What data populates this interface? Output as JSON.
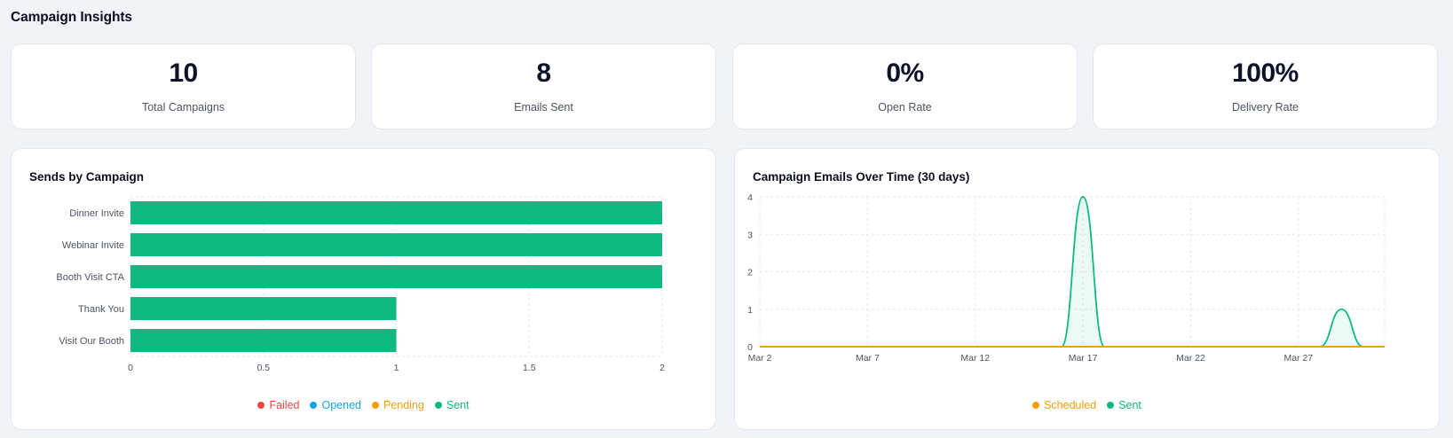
{
  "page": {
    "title": "Campaign Insights"
  },
  "stats": [
    {
      "value": "10",
      "label": "Total Campaigns"
    },
    {
      "value": "8",
      "label": "Emails Sent"
    },
    {
      "value": "0%",
      "label": "Open Rate"
    },
    {
      "value": "100%",
      "label": "Delivery Rate"
    }
  ],
  "colors": {
    "sent": "#10b981",
    "failed": "#ef4444",
    "opened": "#0ea5e9",
    "pending": "#f59e0b",
    "scheduled": "#f59e0b"
  },
  "sends_chart": {
    "title": "Sends by Campaign",
    "legend": [
      {
        "label": "Failed",
        "color": "#ef4444"
      },
      {
        "label": "Opened",
        "color": "#0ea5e9"
      },
      {
        "label": "Pending",
        "color": "#f59e0b"
      },
      {
        "label": "Sent",
        "color": "#10b981"
      }
    ]
  },
  "time_chart": {
    "title": "Campaign Emails Over Time (30 days)",
    "legend": [
      {
        "label": "Scheduled",
        "color": "#f59e0b"
      },
      {
        "label": "Sent",
        "color": "#10b981"
      }
    ]
  },
  "chart_data": [
    {
      "type": "bar",
      "orientation": "horizontal",
      "title": "Sends by Campaign",
      "categories": [
        "Dinner Invite",
        "Webinar Invite",
        "Booth Visit CTA",
        "Thank You",
        "Visit Our Booth"
      ],
      "series": [
        {
          "name": "Failed",
          "values": [
            0,
            0,
            0,
            0,
            0
          ]
        },
        {
          "name": "Opened",
          "values": [
            0,
            0,
            0,
            0,
            0
          ]
        },
        {
          "name": "Pending",
          "values": [
            0,
            0,
            0,
            0,
            0
          ]
        },
        {
          "name": "Sent",
          "values": [
            2,
            2,
            2,
            1,
            1
          ]
        }
      ],
      "xlim": [
        0,
        2
      ],
      "x_ticks": [
        "0",
        "0.5",
        "1",
        "1.5",
        "2"
      ],
      "grid": true,
      "legend_position": "bottom"
    },
    {
      "type": "line",
      "title": "Campaign Emails Over Time (30 days)",
      "x": [
        "Mar 2",
        "Mar 3",
        "Mar 4",
        "Mar 5",
        "Mar 6",
        "Mar 7",
        "Mar 8",
        "Mar 9",
        "Mar 10",
        "Mar 11",
        "Mar 12",
        "Mar 13",
        "Mar 14",
        "Mar 15",
        "Mar 16",
        "Mar 17",
        "Mar 18",
        "Mar 19",
        "Mar 20",
        "Mar 21",
        "Mar 22",
        "Mar 23",
        "Mar 24",
        "Mar 25",
        "Mar 26",
        "Mar 27",
        "Mar 28",
        "Mar 29",
        "Mar 30",
        "Mar 31"
      ],
      "x_tick_labels": [
        "Mar 2",
        "Mar 7",
        "Mar 12",
        "Mar 17",
        "Mar 22",
        "Mar 27"
      ],
      "series": [
        {
          "name": "Scheduled",
          "values": [
            0,
            0,
            0,
            0,
            0,
            0,
            0,
            0,
            0,
            0,
            0,
            0,
            0,
            0,
            0,
            0,
            0,
            0,
            0,
            0,
            0,
            0,
            0,
            0,
            0,
            0,
            0,
            0,
            0,
            0
          ]
        },
        {
          "name": "Sent",
          "values": [
            0,
            0,
            0,
            0,
            0,
            0,
            0,
            0,
            0,
            0,
            0,
            0,
            0,
            0,
            0,
            4,
            0,
            0,
            0,
            0,
            0,
            0,
            0,
            0,
            0,
            0,
            0,
            1,
            0,
            0
          ]
        }
      ],
      "ylim": [
        0,
        4
      ],
      "y_ticks": [
        "0",
        "1",
        "2",
        "3",
        "4"
      ],
      "grid": true,
      "legend_position": "bottom"
    }
  ]
}
